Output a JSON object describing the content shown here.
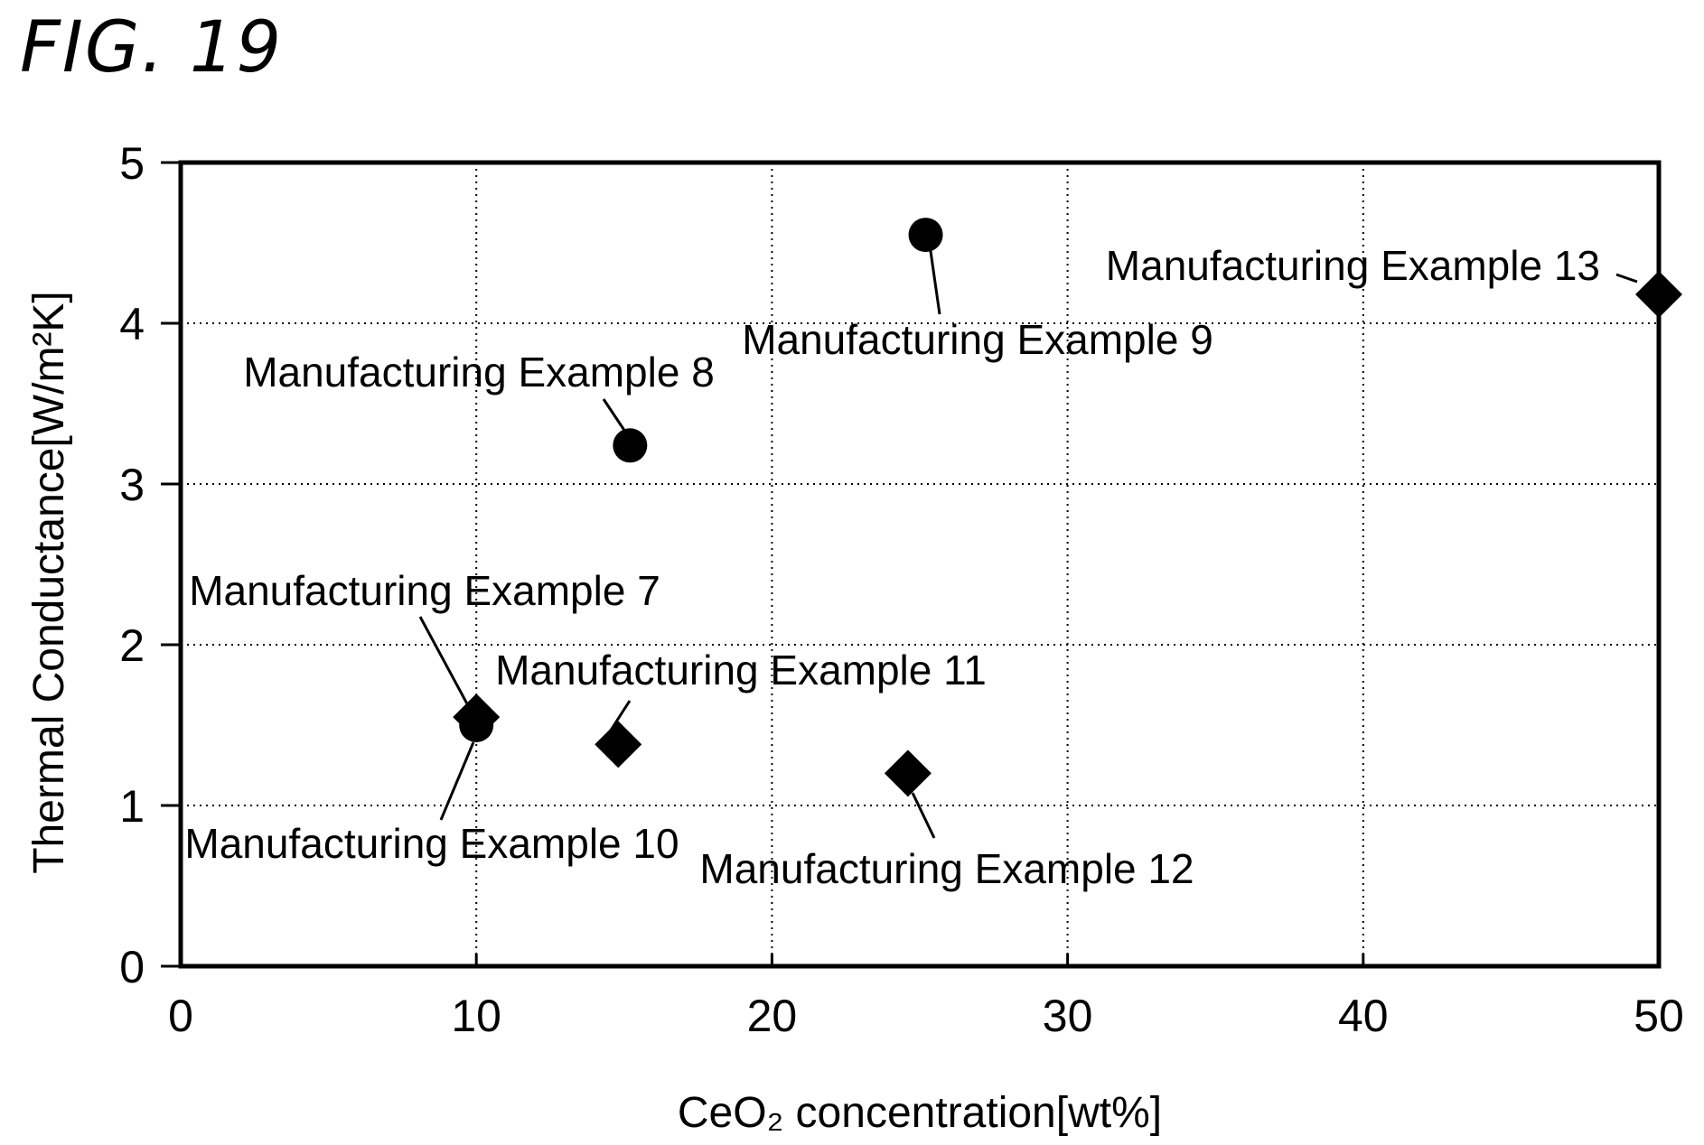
{
  "figure_label": "FIG. 19",
  "chart_data": {
    "type": "scatter",
    "title": "",
    "xlabel": "CeO₂ concentration[wt%]",
    "ylabel": "Thermal Conductance[W/m²K]",
    "xlim": [
      0,
      50
    ],
    "ylim": [
      0,
      5
    ],
    "xticks": [
      0,
      10,
      20,
      30,
      40,
      50
    ],
    "yticks": [
      0,
      1,
      2,
      3,
      4,
      5
    ],
    "grid": true,
    "grid_style": "dotted",
    "series": [
      {
        "marker": "circle",
        "points": [
          {
            "x": 10,
            "y": 1.5,
            "label": "Manufacturing Example 10"
          },
          {
            "x": 15.2,
            "y": 3.24,
            "label": "Manufacturing Example 8"
          },
          {
            "x": 25.2,
            "y": 4.55,
            "label": "Manufacturing Example 9"
          }
        ]
      },
      {
        "marker": "diamond",
        "points": [
          {
            "x": 10,
            "y": 1.55,
            "label": "Manufacturing Example 7"
          },
          {
            "x": 14.8,
            "y": 1.38,
            "label": "Manufacturing Example 11"
          },
          {
            "x": 24.6,
            "y": 1.2,
            "label": "Manufacturing Example 12"
          },
          {
            "x": 50,
            "y": 4.18,
            "label": "Manufacturing Example 13"
          }
        ]
      }
    ]
  }
}
